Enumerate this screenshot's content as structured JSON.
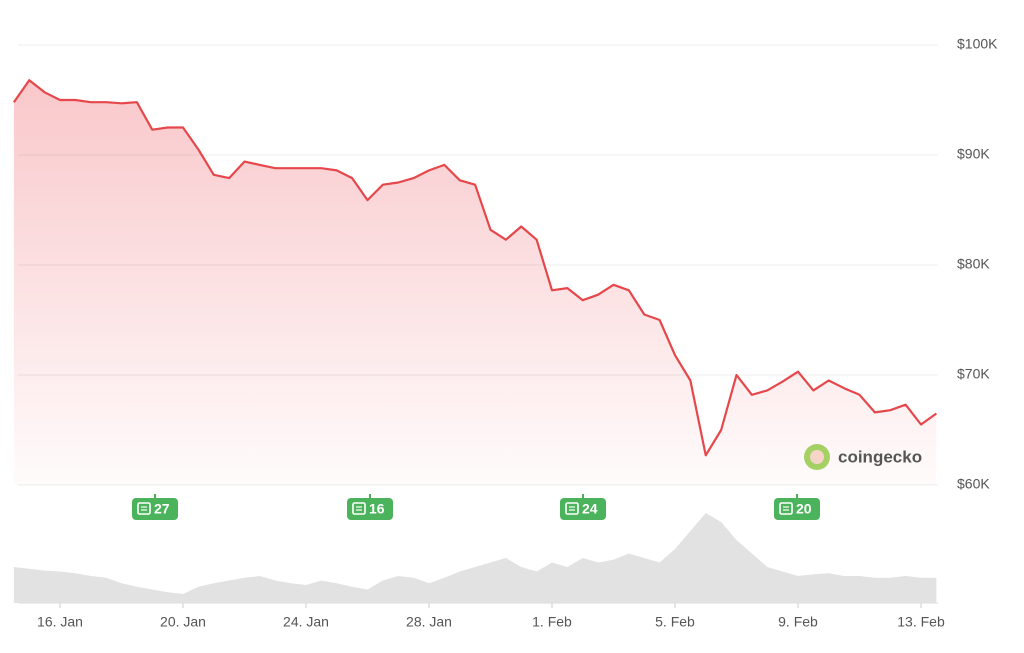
{
  "chart_data": {
    "type": "line",
    "categories": [
      null,
      null,
      null,
      "16. Jan",
      null,
      null,
      null,
      null,
      null,
      null,
      null,
      "20. Jan",
      null,
      null,
      null,
      null,
      null,
      null,
      null,
      "24. Jan",
      null,
      null,
      null,
      null,
      null,
      null,
      null,
      "28. Jan",
      null,
      null,
      null,
      null,
      null,
      null,
      null,
      "1. Feb",
      null,
      null,
      null,
      null,
      null,
      null,
      null,
      "5. Feb",
      null,
      null,
      null,
      null,
      null,
      null,
      null,
      "9. Feb",
      null,
      null,
      null,
      null,
      null,
      null,
      null,
      "13. Feb",
      null
    ],
    "values": [
      94800,
      96800,
      95700,
      95000,
      95000,
      94800,
      94800,
      94700,
      94800,
      92300,
      92500,
      92500,
      90500,
      88200,
      87900,
      89400,
      89100,
      88800,
      88800,
      88800,
      88800,
      88600,
      87900,
      85900,
      87300,
      87500,
      87900,
      88600,
      89100,
      87700,
      87300,
      83200,
      82300,
      83500,
      82300,
      77700,
      77900,
      76800,
      77300,
      78200,
      77700,
      75500,
      75000,
      71800,
      69500,
      62700,
      65000,
      70000,
      68200,
      68600,
      69400,
      70300,
      68600,
      69500,
      68800,
      68200,
      66600,
      66800,
      67300,
      65500,
      66500
    ],
    "color": "#e5474b",
    "ylim": [
      60000,
      100000
    ],
    "yticks": [
      {
        "value": 60000,
        "label": "$60K"
      },
      {
        "value": 70000,
        "label": "$70K"
      },
      {
        "value": 80000,
        "label": "$80K"
      },
      {
        "value": 90000,
        "label": "$90K"
      },
      {
        "value": 100000,
        "label": "$100K"
      }
    ],
    "grid": true,
    "volume": {
      "values": [
        40,
        38,
        36,
        35,
        33,
        30,
        28,
        22,
        18,
        15,
        12,
        10,
        18,
        22,
        25,
        28,
        30,
        25,
        22,
        20,
        25,
        22,
        18,
        15,
        25,
        30,
        28,
        22,
        28,
        35,
        40,
        45,
        50,
        40,
        35,
        45,
        40,
        50,
        45,
        48,
        55,
        50,
        45,
        60,
        80,
        100,
        90,
        70,
        55,
        40,
        35,
        30,
        32,
        33,
        30,
        30,
        28,
        28,
        30,
        28,
        28
      ],
      "ylim": [
        0,
        100
      ],
      "color": "#e2e2e2"
    },
    "news": [
      27,
      16,
      24,
      20
    ],
    "watermark": "coingecko"
  }
}
